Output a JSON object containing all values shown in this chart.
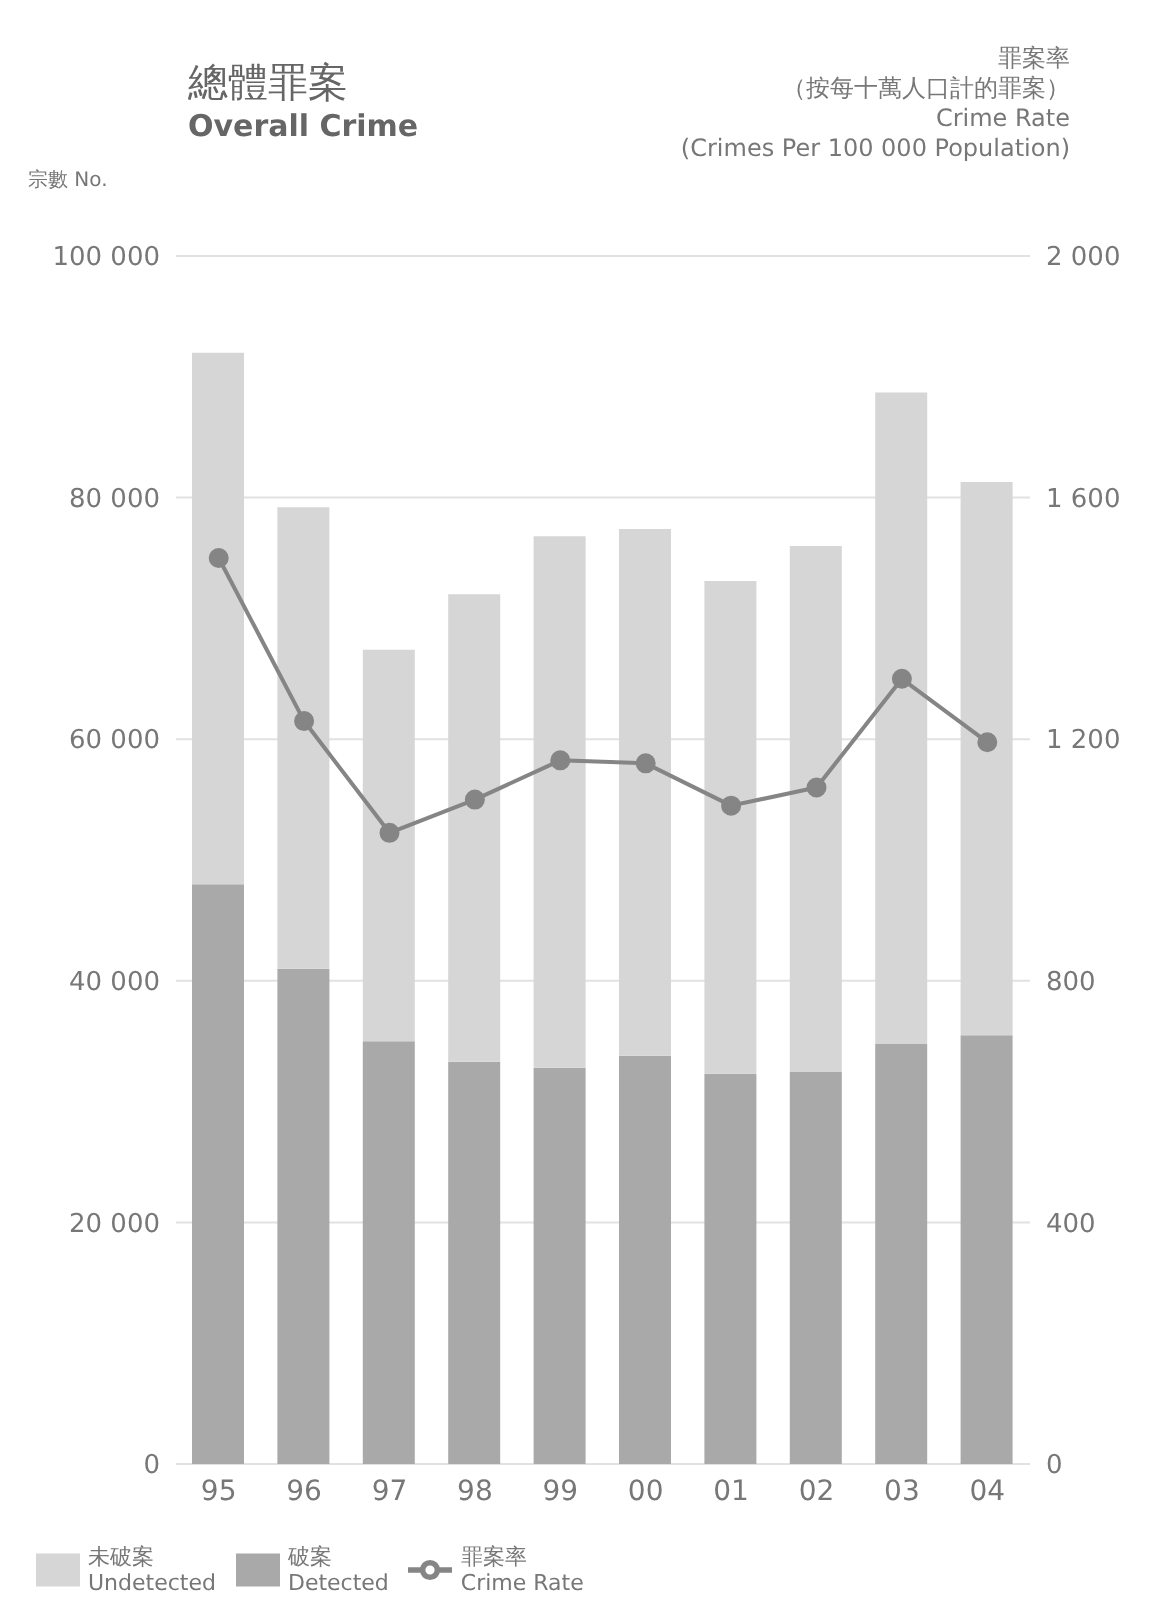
{
  "chart_data": {
    "type": "bar",
    "title": "總體罪案",
    "subtitle": "Overall Crime",
    "ylabel": "宗數 No.",
    "y2label": "罪案率（按每十萬人口計的罪案）\nCrime Rate\n(Crimes Per 100 000 Population)",
    "categories": [
      "95",
      "96",
      "97",
      "98",
      "99",
      "00",
      "01",
      "02",
      "03",
      "04"
    ],
    "stacked": true,
    "series": [
      {
        "name": "破案\nDetected",
        "color": "#a9a9a9",
        "values": [
          48000,
          41000,
          35000,
          33300,
          32800,
          33800,
          32300,
          32500,
          34800,
          35500
        ]
      },
      {
        "name": "未破案\nUndetected",
        "color": "#d6d6d6",
        "values": [
          44000,
          38200,
          32400,
          38700,
          44000,
          43600,
          40800,
          43500,
          53900,
          45800
        ]
      },
      {
        "name": "罪案率\nCrime Rate",
        "type": "line",
        "axis": "y2",
        "color": "#858585",
        "marker": "circle",
        "values": [
          1500,
          1230,
          1045,
          1100,
          1165,
          1160,
          1090,
          1120,
          1300,
          1195
        ]
      }
    ],
    "ylim": [
      0,
      100000
    ],
    "yticks": [
      0,
      {
        "value": 20000,
        "label": "20 000"
      },
      {
        "value": 40000,
        "label": "40 000"
      },
      {
        "value": 60000,
        "label": "60 000"
      },
      {
        "value": 80000,
        "label": "80 000"
      },
      {
        "value": 100000,
        "label": "100 000"
      }
    ],
    "y2lim": [
      0,
      2000
    ],
    "y2ticks": [
      0,
      400,
      800,
      {
        "value": 1200,
        "label": "1 200"
      },
      {
        "value": 1600,
        "label": "1 600"
      },
      {
        "value": 2000,
        "label": "2 000"
      }
    ],
    "grid": "y",
    "legend": "bottom"
  }
}
